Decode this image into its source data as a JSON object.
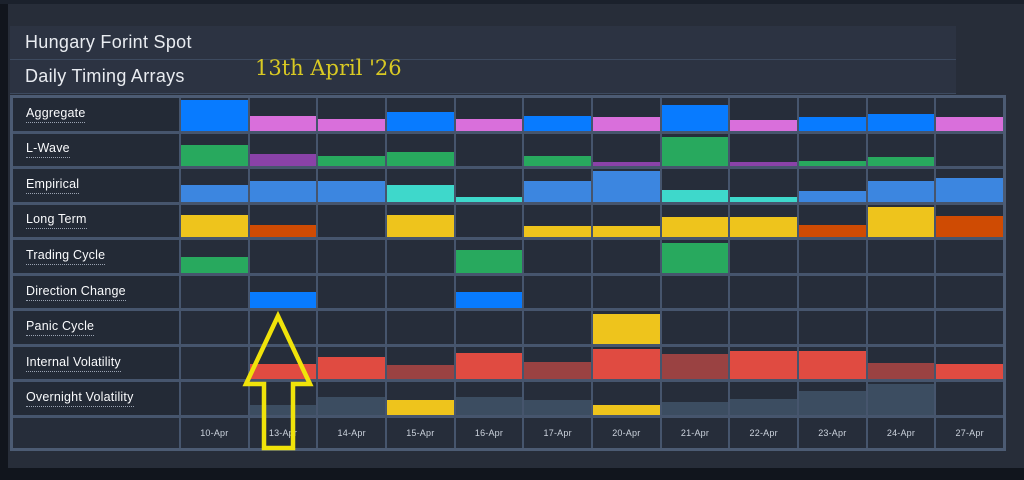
{
  "page": {
    "title": "Hungary Forint Spot",
    "subtitle": "Daily Timing Arrays",
    "annotation": "13th April '26"
  },
  "colors": {
    "blue": "#087bff",
    "magenta": "#d96fdb",
    "green": "#28a95e",
    "purple": "#8a42a8",
    "skyblue": "#3c86e0",
    "cyan": "#3ed8cb",
    "yellow": "#eec41c",
    "orange": "#cf4b03",
    "red": "#e04b41",
    "darkred": "#9a4242",
    "slate": "#3c4d61",
    "arrow": "#f0e30a",
    "panel_border": "#4c5b73",
    "cell_bg": "#262d3a",
    "page_bg": "#272d39"
  },
  "chart_data": {
    "type": "heatmap",
    "title": "Hungary Forint Spot — Daily Timing Arrays",
    "xlabel": "Date",
    "ylabel": "Timing model",
    "legend_position": "none",
    "grid": true,
    "note": "Each cell is a bottom-anchored bar; value = fraction of row height (0-1), color = semantic key into colors map. Yellow arrow annotation marks 13-Apr.",
    "columns": [
      "10-Apr",
      "13-Apr",
      "14-Apr",
      "15-Apr",
      "16-Apr",
      "17-Apr",
      "20-Apr",
      "21-Apr",
      "22-Apr",
      "23-Apr",
      "24-Apr",
      "27-Apr"
    ],
    "rows": [
      {
        "label": "Aggregate",
        "cells": [
          {
            "color": "blue",
            "value": 0.93
          },
          {
            "color": "magenta",
            "value": 0.45
          },
          {
            "color": "magenta",
            "value": 0.36
          },
          {
            "color": "blue",
            "value": 0.56
          },
          {
            "color": "magenta",
            "value": 0.36
          },
          {
            "color": "blue",
            "value": 0.45
          },
          {
            "color": "magenta",
            "value": 0.43
          },
          {
            "color": "blue",
            "value": 0.8
          },
          {
            "color": "magenta",
            "value": 0.33
          },
          {
            "color": "blue",
            "value": 0.43
          },
          {
            "color": "blue",
            "value": 0.52
          },
          {
            "color": "magenta",
            "value": 0.43
          }
        ]
      },
      {
        "label": "L-Wave",
        "cells": [
          {
            "color": "green",
            "value": 0.65
          },
          {
            "color": "purple",
            "value": 0.38
          },
          {
            "color": "green",
            "value": 0.3
          },
          {
            "color": "green",
            "value": 0.44
          },
          null,
          {
            "color": "green",
            "value": 0.3
          },
          {
            "color": "purple",
            "value": 0.13
          },
          {
            "color": "green",
            "value": 0.88
          },
          {
            "color": "purple",
            "value": 0.13
          },
          {
            "color": "green",
            "value": 0.16
          },
          {
            "color": "green",
            "value": 0.27
          },
          null
        ]
      },
      {
        "label": "Empirical",
        "cells": [
          {
            "color": "skyblue",
            "value": 0.5
          },
          {
            "color": "skyblue",
            "value": 0.65
          },
          {
            "color": "skyblue",
            "value": 0.65
          },
          {
            "color": "cyan",
            "value": 0.5
          },
          {
            "color": "cyan",
            "value": 0.15
          },
          {
            "color": "skyblue",
            "value": 0.65
          },
          {
            "color": "skyblue",
            "value": 0.95
          },
          {
            "color": "cyan",
            "value": 0.35
          },
          {
            "color": "cyan",
            "value": 0.15
          },
          {
            "color": "skyblue",
            "value": 0.32
          },
          {
            "color": "skyblue",
            "value": 0.65
          },
          {
            "color": "skyblue",
            "value": 0.73
          }
        ]
      },
      {
        "label": "Long Term",
        "cells": [
          {
            "color": "yellow",
            "value": 0.68
          },
          {
            "color": "orange",
            "value": 0.38
          },
          null,
          {
            "color": "yellow",
            "value": 0.68
          },
          null,
          {
            "color": "yellow",
            "value": 0.35
          },
          {
            "color": "yellow",
            "value": 0.35
          },
          {
            "color": "yellow",
            "value": 0.62
          },
          {
            "color": "yellow",
            "value": 0.62
          },
          {
            "color": "orange",
            "value": 0.38
          },
          {
            "color": "yellow",
            "value": 0.94
          },
          {
            "color": "orange",
            "value": 0.65
          }
        ]
      },
      {
        "label": "Trading Cycle",
        "cells": [
          {
            "color": "green",
            "value": 0.47
          },
          null,
          null,
          null,
          {
            "color": "green",
            "value": 0.7
          },
          null,
          null,
          {
            "color": "green",
            "value": 0.93
          },
          null,
          null,
          null,
          null
        ]
      },
      {
        "label": "Direction Change",
        "cells": [
          null,
          {
            "color": "blue",
            "value": 0.5
          },
          null,
          null,
          {
            "color": "blue",
            "value": 0.5
          },
          null,
          null,
          null,
          null,
          null,
          null,
          null
        ]
      },
      {
        "label": "Panic Cycle",
        "cells": [
          null,
          null,
          null,
          null,
          null,
          null,
          {
            "color": "yellow",
            "value": 0.93
          },
          null,
          null,
          null,
          null,
          null
        ]
      },
      {
        "label": "Internal Volatility",
        "cells": [
          null,
          {
            "color": "red",
            "value": 0.48
          },
          {
            "color": "red",
            "value": 0.7
          },
          {
            "color": "darkred",
            "value": 0.45
          },
          {
            "color": "red",
            "value": 0.8
          },
          {
            "color": "darkred",
            "value": 0.55
          },
          {
            "color": "red",
            "value": 0.92
          },
          {
            "color": "darkred",
            "value": 0.78
          },
          {
            "color": "red",
            "value": 0.88
          },
          {
            "color": "red",
            "value": 0.88
          },
          {
            "color": "darkred",
            "value": 0.5
          },
          {
            "color": "red",
            "value": 0.48
          }
        ]
      },
      {
        "label": "Overnight Volatility",
        "cells": [
          null,
          {
            "color": "slate",
            "value": 0.3
          },
          {
            "color": "slate",
            "value": 0.55
          },
          {
            "color": "yellow",
            "value": 0.45
          },
          {
            "color": "slate",
            "value": 0.55
          },
          {
            "color": "slate",
            "value": 0.45
          },
          {
            "color": "yellow",
            "value": 0.3
          },
          {
            "color": "slate",
            "value": 0.4
          },
          {
            "color": "slate",
            "value": 0.5
          },
          {
            "color": "slate",
            "value": 0.75
          },
          {
            "color": "slate",
            "value": 0.95
          },
          null
        ]
      }
    ],
    "annotation": {
      "text": "13th April '26",
      "arrow_marks_column": "13-Apr"
    }
  }
}
